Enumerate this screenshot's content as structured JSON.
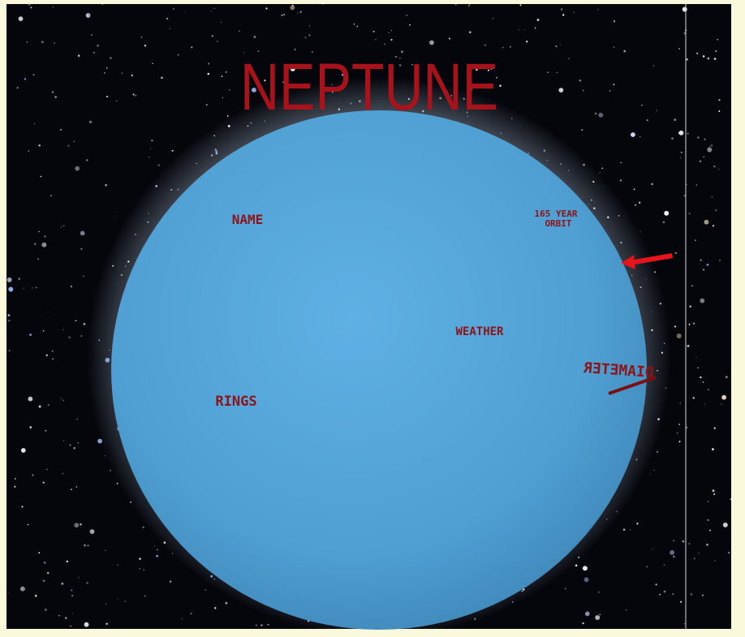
{
  "scene": {
    "title": "NEPTUNE",
    "labels": {
      "name": "NAME",
      "orbit": [
        "165 YEAR",
        "ORBIT"
      ],
      "weather": "WEATHER",
      "rings": "RINGS",
      "diameter": "DIAMETER"
    }
  }
}
